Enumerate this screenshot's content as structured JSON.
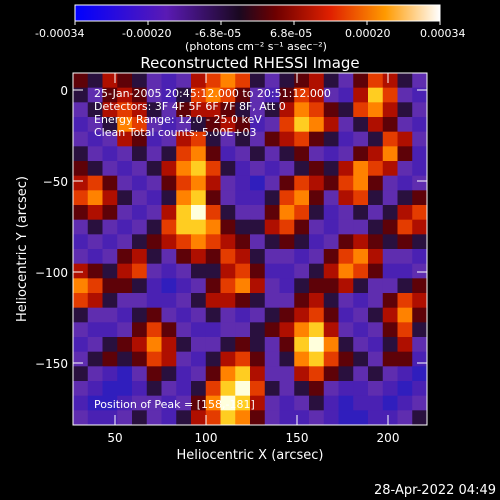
{
  "colorbar": {
    "ticks": [
      "-0.00034",
      "-0.00020",
      "-6.8e-05",
      "6.8e-05",
      "0.00020",
      "0.00034"
    ],
    "units_label": "(photons cm⁻² s⁻¹ asec⁻²)",
    "range": [
      -0.00034,
      0.00034
    ]
  },
  "chart_data": {
    "type": "heatmap",
    "title": "Reconstructed RHESSI Image",
    "xlabel": "Heliocentric X (arcsec)",
    "ylabel": "Heliocentric Y (arcsec)",
    "xlim": [
      27,
      220
    ],
    "ylim": [
      -185,
      8
    ],
    "x_ticks": [
      "50",
      "100",
      "150",
      "200"
    ],
    "y_ticks": [
      "0",
      "−50",
      "−100",
      "−150"
    ],
    "annotations": [
      "25-Jan-2005 20:45:12.000 to 20:51:12.000",
      "Detectors: 3F 4F 5F 6F 7F 8F, Att 0",
      "Energy Range: 12.0 - 25.0 keV",
      "Clean     Total counts: 5.00E+03"
    ],
    "peak_label": "Position of Peak = [158,-181]",
    "grid": false,
    "colormap": "blue-purple-black-red-orange-yellow-white",
    "grid_size": [
      24,
      24
    ],
    "intensity": [
      [
        0.5,
        0.4,
        0.6,
        0.5,
        0.4,
        0.3,
        0.2,
        0.3,
        0.6,
        0.7,
        0.8,
        0.7,
        0.4,
        0.3,
        0.4,
        0.5,
        0.6,
        0.4,
        0.3,
        0.5,
        0.7,
        0.6,
        0.4,
        0.3
      ],
      [
        0.4,
        0.3,
        0.5,
        0.6,
        0.5,
        0.3,
        0.2,
        0.4,
        0.7,
        0.8,
        0.7,
        0.5,
        0.3,
        0.2,
        0.5,
        0.7,
        0.6,
        0.3,
        0.2,
        0.6,
        0.9,
        0.7,
        0.3,
        0.2
      ],
      [
        0.3,
        0.4,
        0.6,
        0.7,
        0.6,
        0.4,
        0.3,
        0.5,
        0.6,
        0.6,
        0.5,
        0.4,
        0.3,
        0.4,
        0.6,
        0.8,
        0.7,
        0.5,
        0.4,
        0.7,
        0.8,
        0.6,
        0.4,
        0.3
      ],
      [
        0.2,
        0.3,
        0.4,
        0.8,
        0.7,
        0.3,
        0.2,
        0.3,
        0.4,
        0.5,
        0.6,
        0.5,
        0.2,
        0.3,
        0.7,
        0.9,
        0.8,
        0.6,
        0.3,
        0.4,
        0.6,
        0.5,
        0.3,
        0.2
      ],
      [
        0.3,
        0.2,
        0.3,
        0.6,
        0.5,
        0.2,
        0.3,
        0.6,
        0.7,
        0.4,
        0.3,
        0.4,
        0.3,
        0.5,
        0.6,
        0.7,
        0.5,
        0.4,
        0.2,
        0.3,
        0.4,
        0.7,
        0.6,
        0.3
      ],
      [
        0.4,
        0.3,
        0.2,
        0.3,
        0.4,
        0.3,
        0.4,
        0.7,
        0.8,
        0.5,
        0.2,
        0.3,
        0.4,
        0.3,
        0.4,
        0.5,
        0.3,
        0.2,
        0.3,
        0.5,
        0.6,
        0.8,
        0.5,
        0.2
      ],
      [
        0.5,
        0.4,
        0.3,
        0.2,
        0.3,
        0.4,
        0.6,
        0.8,
        0.9,
        0.7,
        0.4,
        0.2,
        0.3,
        0.2,
        0.3,
        0.4,
        0.5,
        0.4,
        0.6,
        0.8,
        0.7,
        0.6,
        0.3,
        0.2
      ],
      [
        0.6,
        0.7,
        0.5,
        0.3,
        0.2,
        0.3,
        0.5,
        0.7,
        0.8,
        0.6,
        0.3,
        0.2,
        0.1,
        0.3,
        0.5,
        0.7,
        0.6,
        0.5,
        0.7,
        0.8,
        0.5,
        0.3,
        0.2,
        0.3
      ],
      [
        0.7,
        0.8,
        0.6,
        0.4,
        0.3,
        0.2,
        0.4,
        0.8,
        0.9,
        0.5,
        0.3,
        0.2,
        0.2,
        0.4,
        0.7,
        0.8,
        0.5,
        0.3,
        0.6,
        0.7,
        0.4,
        0.3,
        0.4,
        0.5
      ],
      [
        0.5,
        0.6,
        0.5,
        0.3,
        0.2,
        0.3,
        0.6,
        0.9,
        1.0,
        0.7,
        0.4,
        0.3,
        0.3,
        0.5,
        0.8,
        0.7,
        0.4,
        0.2,
        0.3,
        0.4,
        0.3,
        0.4,
        0.6,
        0.7
      ],
      [
        0.3,
        0.4,
        0.3,
        0.2,
        0.3,
        0.4,
        0.7,
        0.9,
        0.9,
        0.8,
        0.5,
        0.4,
        0.4,
        0.6,
        0.7,
        0.5,
        0.3,
        0.2,
        0.3,
        0.3,
        0.4,
        0.5,
        0.7,
        0.6
      ],
      [
        0.2,
        0.3,
        0.2,
        0.3,
        0.4,
        0.5,
        0.6,
        0.7,
        0.8,
        0.7,
        0.6,
        0.5,
        0.3,
        0.4,
        0.5,
        0.4,
        0.2,
        0.3,
        0.5,
        0.6,
        0.5,
        0.4,
        0.5,
        0.4
      ],
      [
        0.3,
        0.2,
        0.3,
        0.5,
        0.6,
        0.4,
        0.3,
        0.5,
        0.6,
        0.5,
        0.7,
        0.6,
        0.4,
        0.3,
        0.3,
        0.2,
        0.3,
        0.5,
        0.7,
        0.8,
        0.6,
        0.3,
        0.3,
        0.2
      ],
      [
        0.6,
        0.5,
        0.4,
        0.6,
        0.7,
        0.3,
        0.2,
        0.3,
        0.4,
        0.4,
        0.6,
        0.7,
        0.5,
        0.2,
        0.2,
        0.3,
        0.4,
        0.6,
        0.8,
        0.7,
        0.5,
        0.2,
        0.2,
        0.3
      ],
      [
        0.8,
        0.7,
        0.5,
        0.5,
        0.4,
        0.2,
        0.1,
        0.2,
        0.3,
        0.5,
        0.7,
        0.8,
        0.6,
        0.3,
        0.2,
        0.4,
        0.5,
        0.5,
        0.6,
        0.4,
        0.3,
        0.3,
        0.4,
        0.5
      ],
      [
        0.7,
        0.6,
        0.4,
        0.3,
        0.3,
        0.2,
        0.2,
        0.3,
        0.4,
        0.6,
        0.6,
        0.5,
        0.4,
        0.3,
        0.3,
        0.5,
        0.6,
        0.4,
        0.3,
        0.2,
        0.3,
        0.5,
        0.7,
        0.6
      ],
      [
        0.4,
        0.3,
        0.3,
        0.2,
        0.4,
        0.5,
        0.3,
        0.2,
        0.3,
        0.4,
        0.3,
        0.2,
        0.3,
        0.4,
        0.5,
        0.6,
        0.7,
        0.5,
        0.2,
        0.3,
        0.4,
        0.6,
        0.8,
        0.5
      ],
      [
        0.3,
        0.2,
        0.2,
        0.3,
        0.5,
        0.7,
        0.5,
        0.3,
        0.2,
        0.2,
        0.3,
        0.3,
        0.4,
        0.5,
        0.6,
        0.8,
        0.9,
        0.6,
        0.3,
        0.2,
        0.3,
        0.5,
        0.7,
        0.4
      ],
      [
        0.2,
        0.3,
        0.4,
        0.5,
        0.6,
        0.8,
        0.6,
        0.4,
        0.3,
        0.3,
        0.4,
        0.5,
        0.4,
        0.3,
        0.5,
        0.9,
        1.0,
        0.8,
        0.4,
        0.3,
        0.2,
        0.4,
        0.6,
        0.3
      ],
      [
        0.3,
        0.4,
        0.5,
        0.4,
        0.5,
        0.7,
        0.6,
        0.3,
        0.2,
        0.4,
        0.6,
        0.7,
        0.5,
        0.3,
        0.4,
        0.8,
        0.9,
        0.7,
        0.5,
        0.4,
        0.3,
        0.5,
        0.5,
        0.2
      ],
      [
        0.4,
        0.3,
        0.2,
        0.1,
        0.3,
        0.5,
        0.4,
        0.2,
        0.3,
        0.5,
        0.8,
        0.9,
        0.6,
        0.3,
        0.3,
        0.6,
        0.7,
        0.5,
        0.4,
        0.3,
        0.4,
        0.3,
        0.2,
        0.1
      ],
      [
        0.3,
        0.2,
        0.1,
        0.1,
        0.2,
        0.4,
        0.3,
        0.2,
        0.4,
        0.7,
        0.9,
        1.0,
        0.7,
        0.4,
        0.3,
        0.4,
        0.5,
        0.3,
        0.2,
        0.2,
        0.3,
        0.2,
        0.1,
        0.2
      ],
      [
        0.2,
        0.1,
        0.1,
        0.2,
        0.3,
        0.3,
        0.2,
        0.3,
        0.5,
        0.8,
        1.0,
        0.9,
        0.6,
        0.3,
        0.2,
        0.3,
        0.4,
        0.2,
        0.1,
        0.2,
        0.2,
        0.1,
        0.2,
        0.3
      ],
      [
        0.3,
        0.2,
        0.2,
        0.3,
        0.4,
        0.3,
        0.2,
        0.4,
        0.6,
        0.7,
        0.9,
        0.8,
        0.5,
        0.3,
        0.2,
        0.2,
        0.3,
        0.2,
        0.1,
        0.1,
        0.2,
        0.2,
        0.3,
        0.4
      ]
    ]
  },
  "timestamp": "28-Apr-2022 04:49"
}
